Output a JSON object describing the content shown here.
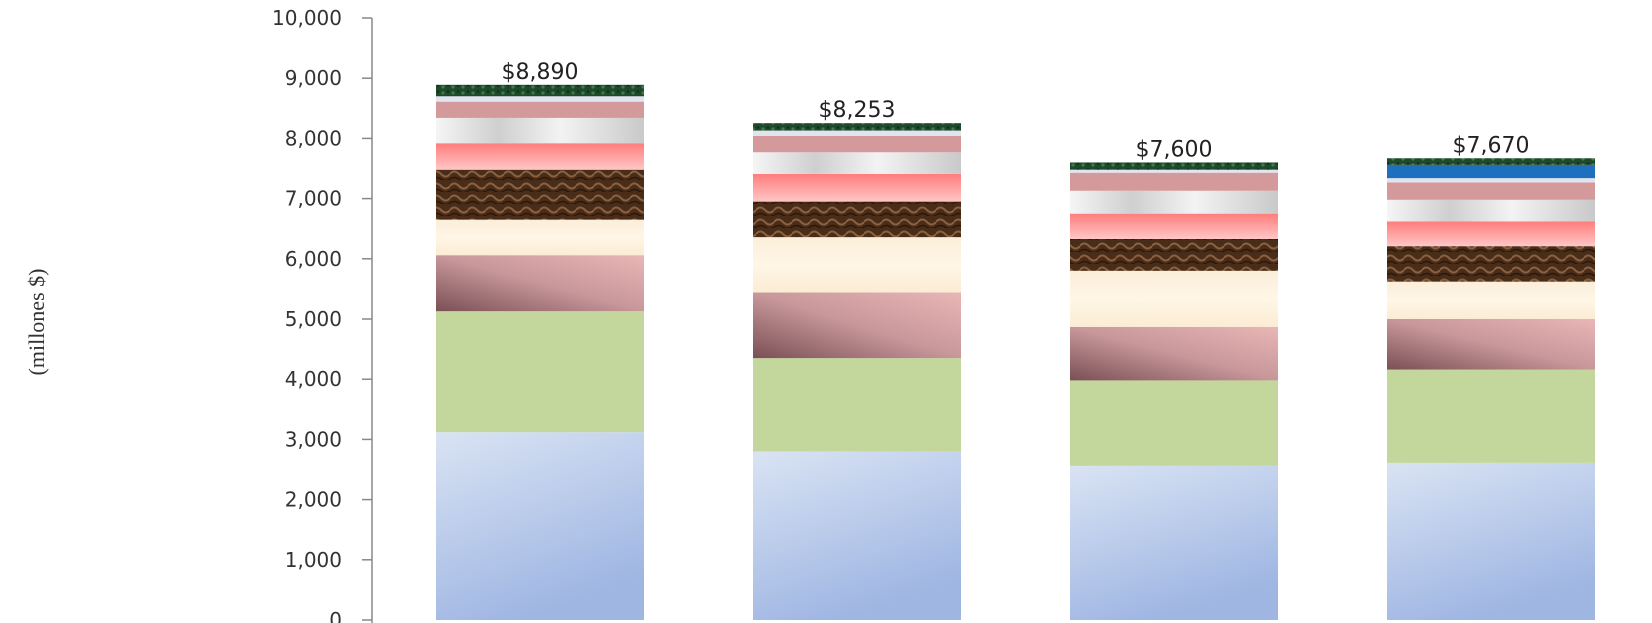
{
  "chart_data": {
    "type": "bar",
    "stacked": true,
    "ylabel": "(millones $)",
    "ylim": [
      0,
      10000
    ],
    "yticks": [
      0,
      1000,
      2000,
      3000,
      4000,
      5000,
      6000,
      7000,
      8000,
      9000,
      10000
    ],
    "ytick_labels": [
      "0",
      "1,000",
      "2,000",
      "3,000",
      "4,000",
      "5,000",
      "6,000",
      "7,000",
      "8,000",
      "9,000",
      "10,000"
    ],
    "categories": [
      "",
      "",
      "",
      ""
    ],
    "totals": [
      8890,
      8253,
      7600,
      7670
    ],
    "total_labels": [
      "$8,890",
      "$8,253",
      "$7,600",
      "$7,670"
    ],
    "series": [
      {
        "values": [
          3120,
          2800,
          2560,
          2610
        ],
        "color": "#a9bfe6"
      },
      {
        "values": [
          2010,
          1550,
          1420,
          1550
        ],
        "color": "#c3d69b"
      },
      {
        "values": [
          930,
          1090,
          890,
          840
        ],
        "color": "#c89294"
      },
      {
        "values": [
          590,
          920,
          930,
          620
        ],
        "color": "#fdf0d8"
      },
      {
        "values": [
          830,
          590,
          530,
          590
        ],
        "color": "#5c3b22"
      },
      {
        "values": [
          440,
          460,
          420,
          410
        ],
        "color": "#ff8c8c"
      },
      {
        "values": [
          420,
          360,
          380,
          360
        ],
        "color": "#e6e6e6"
      },
      {
        "values": [
          270,
          270,
          300,
          290
        ],
        "color": "#d4999b"
      },
      {
        "values": [
          90,
          90,
          50,
          70
        ],
        "color": "#dfe4ee"
      },
      {
        "values": [
          0,
          0,
          0,
          220
        ],
        "color": "#1f6fbf"
      },
      {
        "values": [
          190,
          123,
          120,
          110
        ],
        "color": "#1f4d2e"
      }
    ]
  }
}
